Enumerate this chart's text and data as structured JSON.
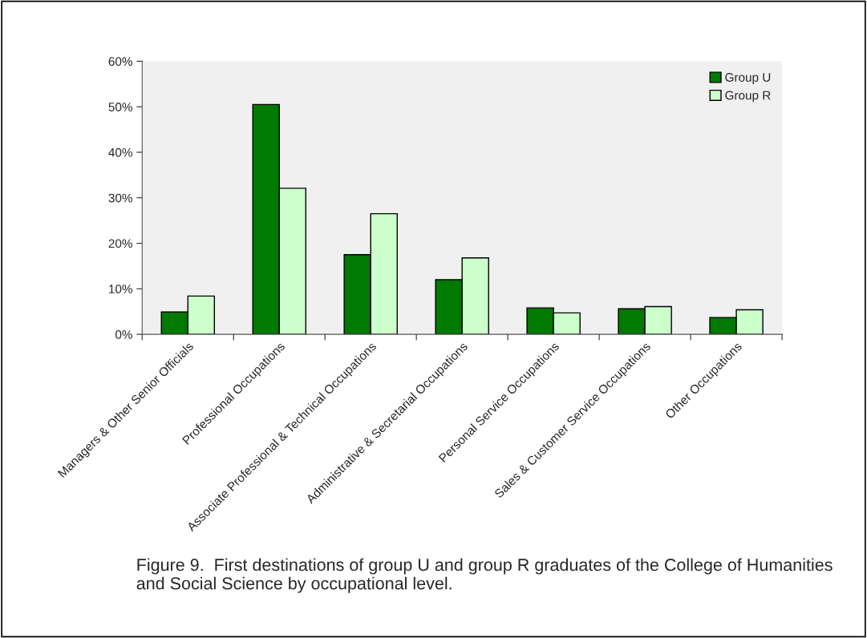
{
  "chart_data": {
    "type": "bar",
    "categories": [
      "Managers & Other Senior Officials",
      "Professional Occupations",
      "Associate Professional & Technical Occupations",
      "Administrative & Secretarial Occupations",
      "Personal Service Occupations",
      "Sales & Customer Service Occupations",
      "Other Occupations"
    ],
    "series": [
      {
        "name": "Group U",
        "color": "#007a00",
        "values": [
          4.9,
          50.5,
          17.5,
          12.0,
          5.8,
          5.6,
          3.7
        ]
      },
      {
        "name": "Group R",
        "color": "#ccffcc",
        "values": [
          8.4,
          32.1,
          26.5,
          16.8,
          4.7,
          6.1,
          5.4
        ]
      }
    ],
    "ylim": [
      0,
      60
    ],
    "yticks": [
      {
        "value": 0,
        "label": "0%"
      },
      {
        "value": 10,
        "label": "10%"
      },
      {
        "value": 20,
        "label": "20%"
      },
      {
        "value": 30,
        "label": "30%"
      },
      {
        "value": 40,
        "label": "40%"
      },
      {
        "value": 50,
        "label": "50%"
      },
      {
        "value": 60,
        "label": "60%"
      }
    ],
    "legend": "top right",
    "grid": false,
    "annotations": [
      "Figure 9.  First destinations of group U and group R graduates of the College of Humanities and Social Science by occupational level."
    ]
  }
}
